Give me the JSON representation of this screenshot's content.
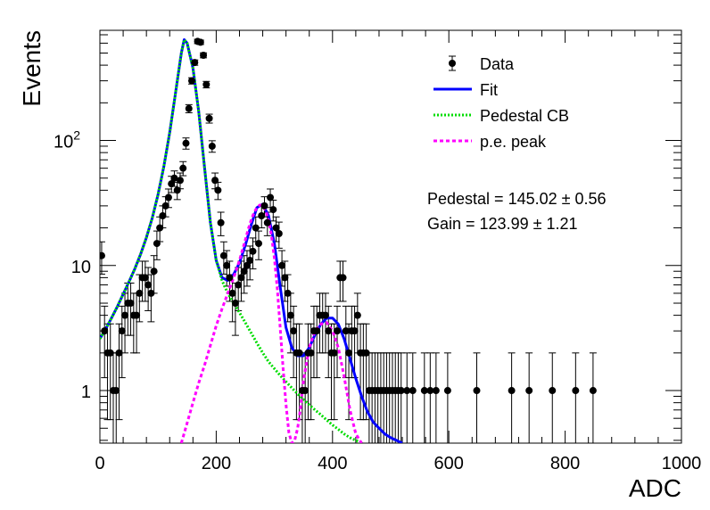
{
  "chart_data": {
    "type": "scatter",
    "xlabel": "ADC",
    "ylabel": "Events",
    "xlim": [
      0,
      1000
    ],
    "ylim": [
      0.38,
      760
    ],
    "yscale": "log",
    "grid": false,
    "legend_position": "top-right",
    "x_ticks": [
      {
        "value": 0,
        "label": "0"
      },
      {
        "value": 200,
        "label": "200"
      },
      {
        "value": 400,
        "label": "400"
      },
      {
        "value": 600,
        "label": "600"
      },
      {
        "value": 800,
        "label": "800"
      },
      {
        "value": 1000,
        "label": "1000"
      }
    ],
    "y_ticks": [
      {
        "value": 1,
        "label": "1",
        "sup": ""
      },
      {
        "value": 10,
        "label": "10",
        "sup": ""
      },
      {
        "value": 100,
        "label": "10",
        "sup": "2"
      }
    ],
    "legend": [
      {
        "key": "data",
        "label": "Data",
        "color": "#000000"
      },
      {
        "key": "fit",
        "label": "Fit",
        "color": "#0000ff"
      },
      {
        "key": "pedestal",
        "label": "Pedestal CB",
        "color": "#00dd00"
      },
      {
        "key": "pe",
        "label": "p.e. peak",
        "color": "#ff00ff"
      }
    ],
    "annotations": {
      "pedestal": "Pedestal = 145.02 ± 0.56",
      "gain": "Gain = 123.99 ± 1.21"
    },
    "series": [
      {
        "name": "Data",
        "type": "scatter",
        "color": "#000000",
        "x": [
          3,
          8,
          13,
          18,
          23,
          28,
          33,
          38,
          43,
          48,
          53,
          58,
          63,
          68,
          73,
          78,
          83,
          88,
          93,
          98,
          103,
          108,
          113,
          118,
          123,
          128,
          133,
          138,
          143,
          148,
          153,
          158,
          163,
          168,
          173,
          178,
          183,
          188,
          193,
          198,
          203,
          208,
          213,
          218,
          223,
          228,
          233,
          238,
          243,
          248,
          253,
          258,
          263,
          268,
          273,
          278,
          283,
          288,
          293,
          298,
          303,
          308,
          313,
          318,
          323,
          328,
          333,
          338,
          343,
          348,
          353,
          358,
          363,
          368,
          373,
          378,
          383,
          388,
          393,
          398,
          403,
          408,
          413,
          418,
          423,
          428,
          433,
          438,
          443,
          448,
          453,
          458,
          463,
          468,
          473,
          478,
          483,
          488,
          493,
          498,
          503,
          508,
          513,
          518,
          528,
          538,
          558,
          568,
          578,
          598,
          648,
          708,
          738,
          778,
          818,
          848
        ],
        "y": [
          12,
          3,
          2,
          2,
          1,
          1,
          2,
          3,
          4,
          5,
          5,
          4,
          4,
          6,
          8,
          8,
          7,
          6,
          9,
          15,
          20,
          25,
          30,
          35,
          45,
          50,
          40,
          48,
          60,
          95,
          180,
          300,
          420,
          620,
          610,
          480,
          280,
          150,
          90,
          48,
          40,
          22,
          12,
          10,
          8,
          6,
          5,
          7,
          8,
          9,
          10,
          11,
          13,
          20,
          15,
          25,
          30,
          22,
          35,
          28,
          20,
          18,
          10,
          8,
          6,
          4,
          3,
          2,
          2,
          1,
          1,
          2,
          2,
          3,
          3,
          4,
          4,
          4,
          3,
          2,
          2,
          3,
          8,
          8,
          3,
          2,
          3,
          3,
          4,
          2,
          2,
          2,
          1,
          1,
          1,
          1,
          1,
          1,
          1,
          1,
          1,
          1,
          1,
          1,
          1,
          1,
          1,
          1,
          1,
          1,
          1,
          1,
          1,
          1,
          1,
          1
        ]
      },
      {
        "name": "Fit",
        "type": "line",
        "color": "#0000ff",
        "x": [
          0,
          10,
          20,
          30,
          40,
          50,
          60,
          70,
          80,
          90,
          100,
          110,
          120,
          130,
          140,
          145,
          150,
          160,
          170,
          180,
          190,
          200,
          210,
          220,
          230,
          240,
          250,
          260,
          270,
          280,
          290,
          300,
          310,
          320,
          330,
          340,
          350,
          360,
          370,
          380,
          390,
          400,
          410,
          420,
          430,
          440,
          450,
          460,
          470,
          480,
          490,
          500,
          510,
          520
        ],
        "y": [
          2.6,
          3.1,
          3.8,
          4.7,
          5.9,
          7.4,
          9.4,
          12.3,
          16.8,
          24,
          37,
          62,
          115,
          240,
          500,
          640,
          600,
          380,
          170,
          60,
          22,
          11,
          8,
          7.6,
          8.5,
          10.5,
          14.5,
          21,
          29,
          31,
          25,
          15,
          6.8,
          3.2,
          2.2,
          1.9,
          1.9,
          2.2,
          2.8,
          3.4,
          3.8,
          3.8,
          3.4,
          2.6,
          1.8,
          1.25,
          0.9,
          0.68,
          0.56,
          0.5,
          0.45,
          0.42,
          0.4,
          0.38
        ]
      },
      {
        "name": "Pedestal CB",
        "type": "line",
        "color": "#00dd00",
        "x": [
          0,
          10,
          20,
          30,
          40,
          50,
          60,
          70,
          80,
          90,
          100,
          110,
          120,
          130,
          140,
          145,
          150,
          160,
          170,
          180,
          190,
          200,
          210,
          220,
          230,
          240,
          250,
          260,
          270,
          280,
          290,
          300,
          310,
          320,
          330,
          340,
          350,
          360,
          370,
          380,
          390,
          400,
          410,
          420,
          430,
          440,
          450
        ],
        "y": [
          2.6,
          3.1,
          3.8,
          4.7,
          5.9,
          7.4,
          9.4,
          12.3,
          16.8,
          24,
          37,
          62,
          115,
          240,
          500,
          640,
          600,
          380,
          170,
          60,
          22,
          11,
          7.6,
          6,
          5,
          4.2,
          3.5,
          2.9,
          2.4,
          2.0,
          1.7,
          1.5,
          1.32,
          1.18,
          1.05,
          0.94,
          0.85,
          0.77,
          0.7,
          0.64,
          0.58,
          0.53,
          0.49,
          0.45,
          0.42,
          0.4,
          0.38
        ]
      },
      {
        "name": "p.e. peak",
        "type": "line",
        "color": "#ff00ff",
        "x": [
          140,
          150,
          160,
          170,
          180,
          190,
          200,
          210,
          220,
          230,
          240,
          250,
          255,
          260,
          265,
          270,
          275,
          280,
          285,
          290,
          295,
          300,
          305,
          310,
          315,
          320,
          325,
          330,
          335,
          340,
          345,
          350,
          360,
          370,
          380,
          390,
          400,
          410,
          420,
          430,
          440,
          450
        ],
        "y": [
          0.38,
          0.55,
          0.8,
          1.15,
          1.6,
          2.3,
          3.3,
          4.5,
          6.0,
          8,
          11,
          16,
          19.5,
          23,
          26.5,
          29,
          30.5,
          30,
          27.5,
          23,
          17.5,
          11.5,
          6.5,
          3.2,
          1.5,
          0.78,
          0.46,
          0.38,
          0.4,
          0.5,
          0.72,
          1.2,
          2.2,
          3.0,
          3.4,
          3.5,
          3.0,
          2.2,
          1.3,
          0.7,
          0.45,
          0.38
        ]
      }
    ]
  }
}
